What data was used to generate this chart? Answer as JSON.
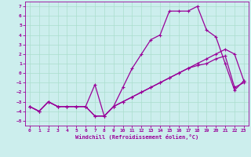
{
  "xlabel": "Windchill (Refroidissement éolien,°C)",
  "bg_color": "#cceeed",
  "grid_color": "#aaddcc",
  "line_color": "#990099",
  "xlim": [
    -0.5,
    23.5
  ],
  "ylim": [
    -5.5,
    7.5
  ],
  "xticks": [
    0,
    1,
    2,
    3,
    4,
    5,
    6,
    7,
    8,
    9,
    10,
    11,
    12,
    13,
    14,
    15,
    16,
    17,
    18,
    19,
    20,
    21,
    22,
    23
  ],
  "yticks": [
    -5,
    -4,
    -3,
    -2,
    -1,
    0,
    1,
    2,
    3,
    4,
    5,
    6,
    7
  ],
  "line1_x": [
    0,
    1,
    2,
    3,
    4,
    5,
    6,
    7,
    8,
    9,
    10,
    11,
    12,
    13,
    14,
    15,
    16,
    17,
    18,
    19,
    20,
    21,
    22,
    23
  ],
  "line1_y": [
    -3.5,
    -4.0,
    -3.0,
    -3.5,
    -3.5,
    -3.5,
    -3.5,
    -4.5,
    -4.5,
    -3.5,
    -3.0,
    -2.5,
    -2.0,
    -1.5,
    -1.0,
    -0.5,
    0.0,
    0.5,
    0.8,
    1.0,
    1.5,
    1.8,
    -1.5,
    -1.0
  ],
  "line2_x": [
    0,
    1,
    2,
    3,
    4,
    5,
    6,
    7,
    8,
    9,
    10,
    11,
    12,
    13,
    14,
    15,
    16,
    17,
    18,
    19,
    20,
    21,
    22,
    23
  ],
  "line2_y": [
    -3.5,
    -4.0,
    -3.0,
    -3.5,
    -3.5,
    -3.5,
    -3.5,
    -1.2,
    -4.5,
    -3.5,
    -1.5,
    0.5,
    2.0,
    3.5,
    4.0,
    6.5,
    6.5,
    6.5,
    7.0,
    4.5,
    3.8,
    1.0,
    -1.8,
    -0.8
  ],
  "line3_x": [
    0,
    1,
    2,
    3,
    4,
    5,
    6,
    7,
    8,
    9,
    10,
    11,
    12,
    13,
    14,
    15,
    16,
    17,
    18,
    19,
    20,
    21,
    22,
    23
  ],
  "line3_y": [
    -3.5,
    -4.0,
    -3.0,
    -3.5,
    -3.5,
    -3.5,
    -3.5,
    -4.5,
    -4.5,
    -3.5,
    -3.0,
    -2.5,
    -2.0,
    -1.5,
    -1.0,
    -0.5,
    0.0,
    0.5,
    1.0,
    1.5,
    2.0,
    2.5,
    2.0,
    -0.8
  ]
}
